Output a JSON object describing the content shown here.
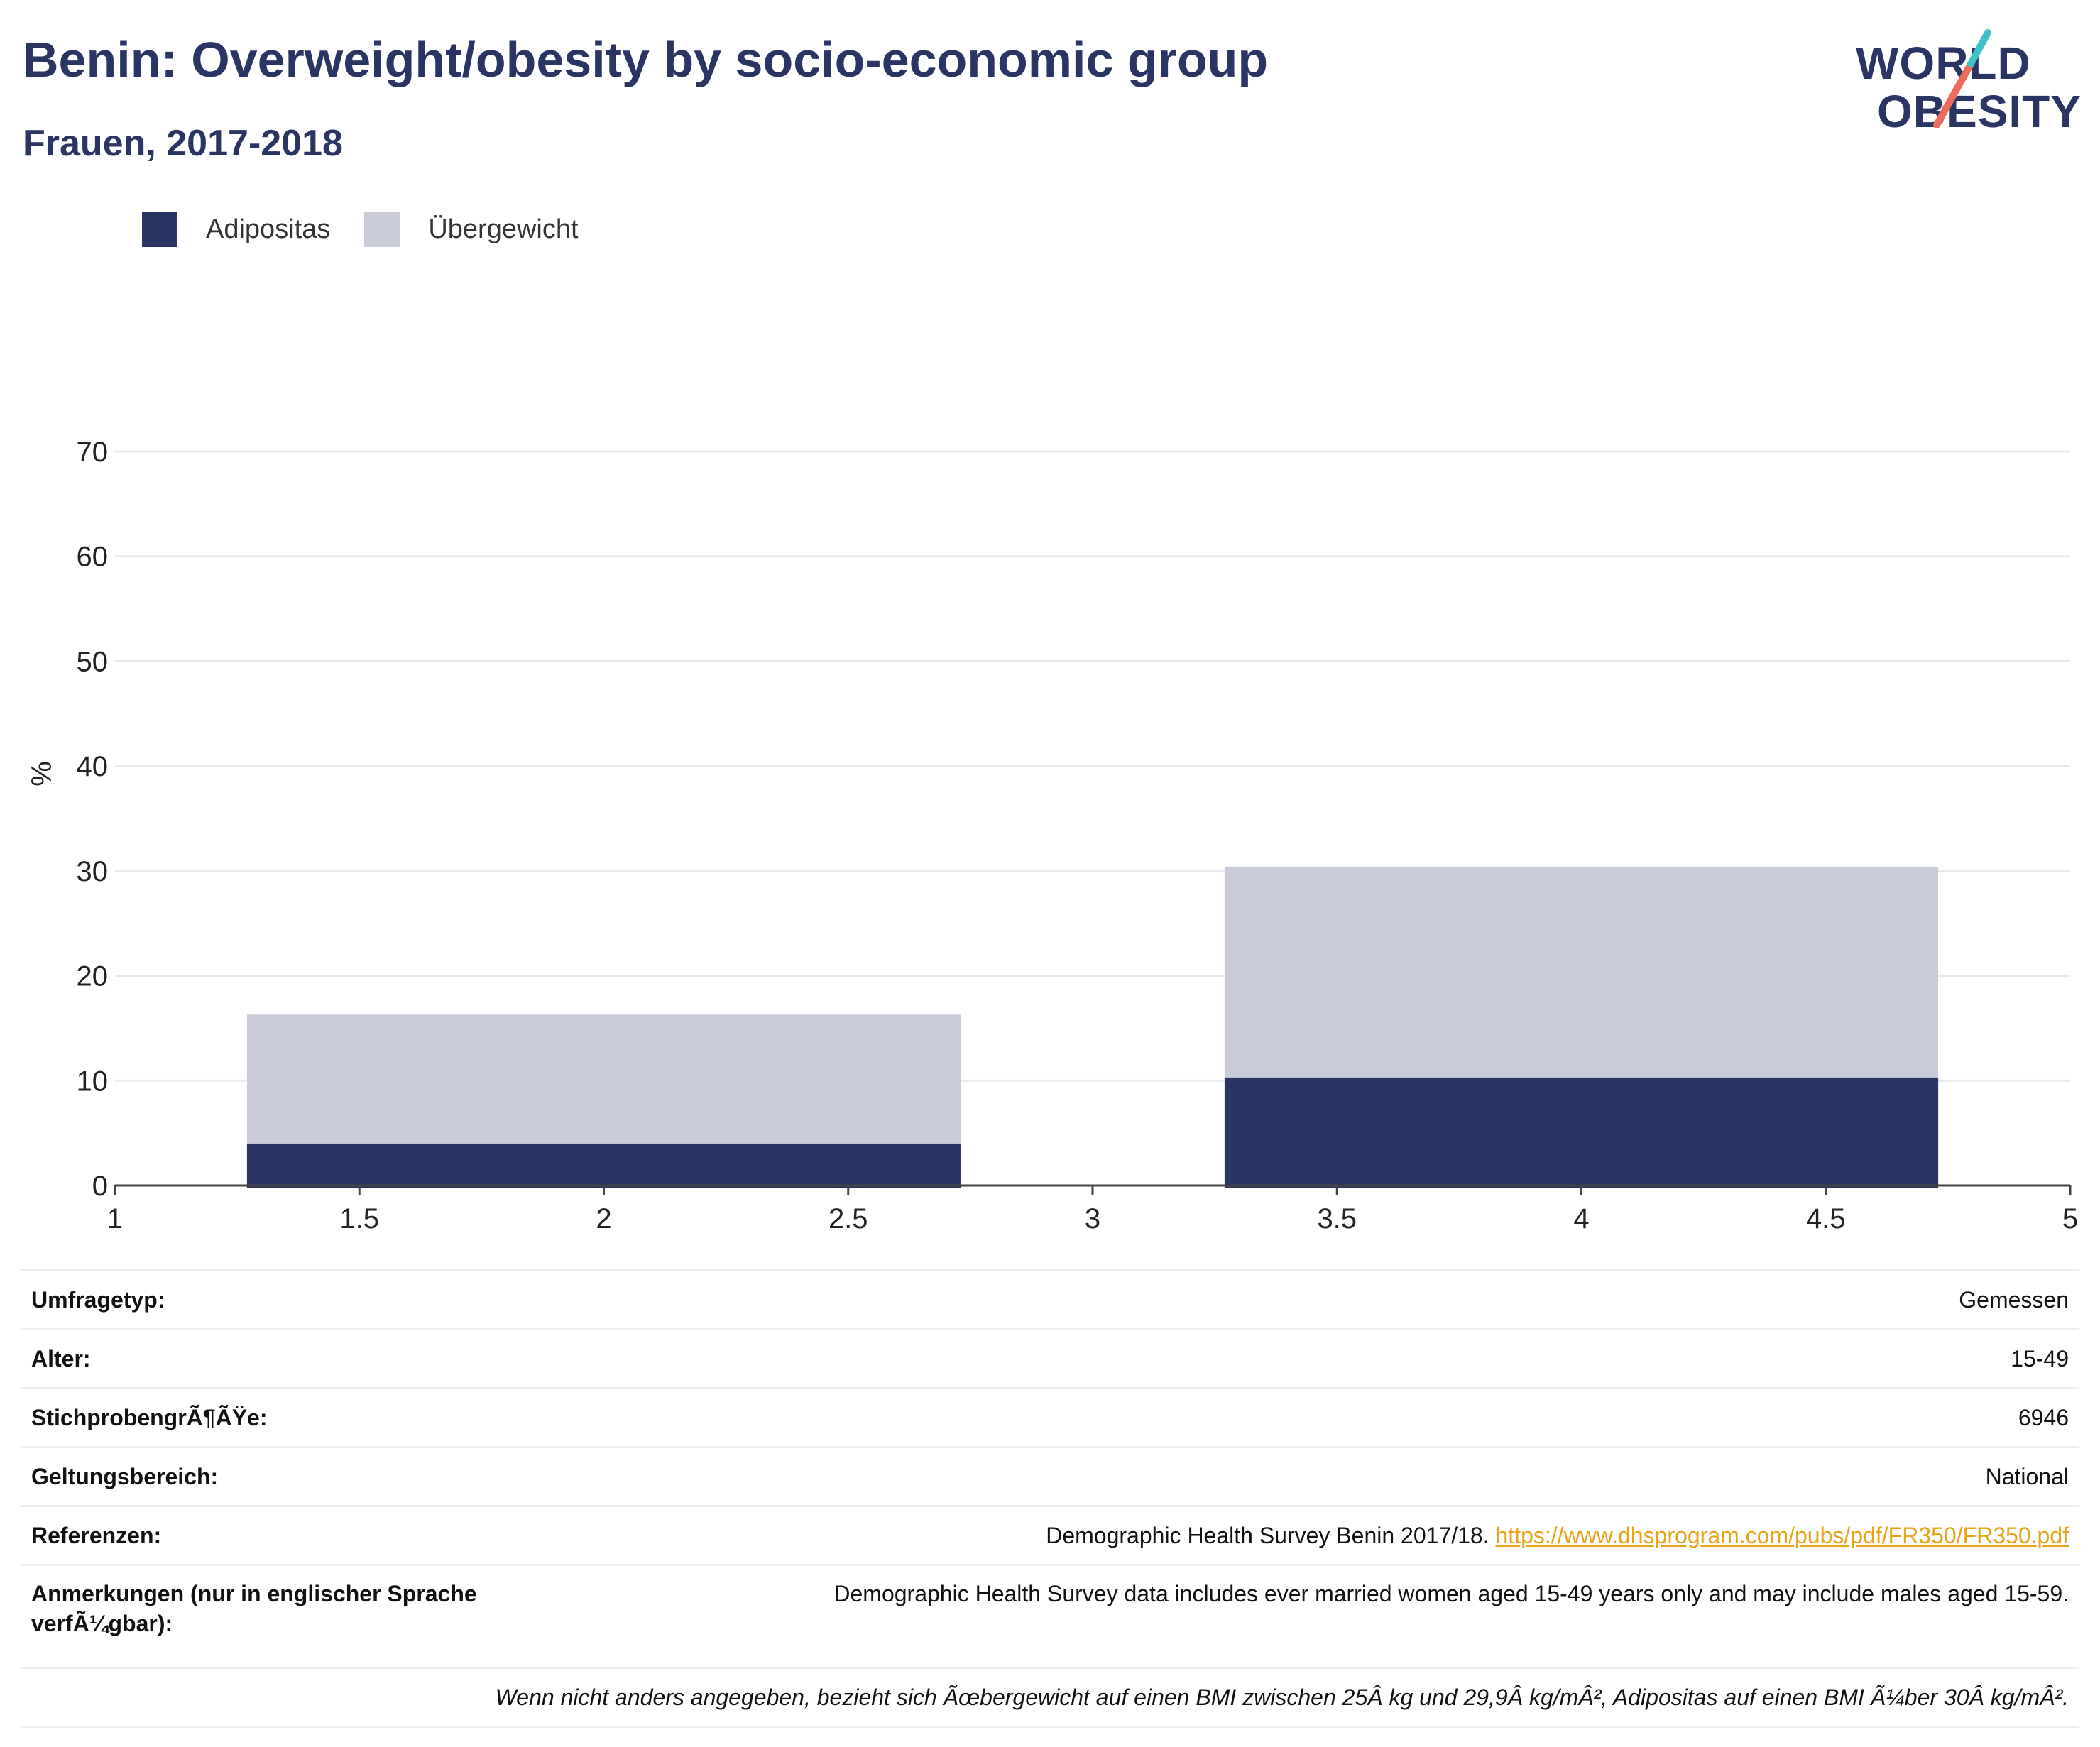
{
  "title": "Benin: Overweight/obesity by socio-economic group",
  "subtitle": "Frauen, 2017-2018",
  "logo": {
    "line1": "WORLD",
    "line2": "OBESITY"
  },
  "colors": {
    "adipositas": "#2a3563",
    "uebergewicht": "#c9ccd8",
    "accent_teal": "#3ec1c9",
    "accent_coral": "#ee6b5a",
    "link": "#e8a317"
  },
  "chart_data": {
    "type": "bar",
    "stacked": true,
    "ylabel": "%",
    "xlim": [
      1,
      5
    ],
    "ylim": [
      0,
      70
    ],
    "x_ticks": [
      "1",
      "1.5",
      "2",
      "2.5",
      "3",
      "3.5",
      "4",
      "4.5",
      "5"
    ],
    "y_ticks": [
      "0",
      "10",
      "20",
      "30",
      "40",
      "50",
      "60",
      "70"
    ],
    "bars": [
      {
        "x_start": 1.27,
        "x_end": 2.73,
        "adipositas": 4.0,
        "total": 16.3
      },
      {
        "x_start": 3.27,
        "x_end": 4.73,
        "adipositas": 10.3,
        "total": 30.4
      }
    ],
    "series": [
      {
        "name": "Adipositas",
        "values": [
          4.0,
          10.3
        ]
      },
      {
        "name": "Übergewicht",
        "values": [
          12.3,
          20.1
        ]
      }
    ],
    "legend_position": "top-left",
    "grid": true
  },
  "info": {
    "survey_type_label": "Umfragetyp:",
    "survey_type_value": "Gemessen",
    "age_label": "Alter:",
    "age_value": "15-49",
    "sample_label": "StichprobengrÃ¶ÃŸe:",
    "sample_value": "6946",
    "scope_label": "Geltungsbereich:",
    "scope_value": "National",
    "references_label": "Referenzen:",
    "references_text": "Demographic Health Survey Benin 2017/18. ",
    "references_link": "https://www.dhsprogram.com/pubs/pdf/FR350/FR350.pdf",
    "notes_label": "Anmerkungen (nur in englischer Sprache verfÃ¼gbar):",
    "notes_value": "Demographic Health Survey data includes ever married women aged 15-49 years only and may include males aged 15-59.",
    "footnote": "Wenn nicht anders angegeben, bezieht sich Ãœbergewicht auf einen BMI zwischen 25Â kg und 29,9Â kg/mÂ², Adipositas auf einen BMI Ã¼ber 30Â kg/mÂ²."
  }
}
